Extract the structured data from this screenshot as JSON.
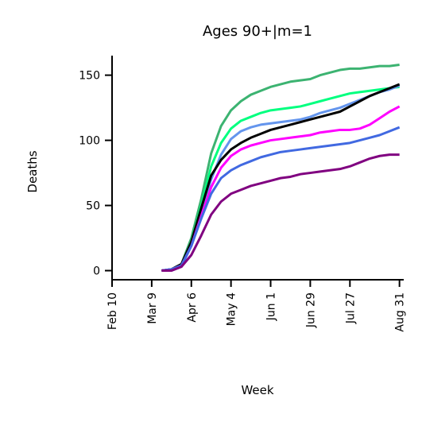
{
  "chart_data": {
    "type": "line",
    "title": "Ages 90+|m=1",
    "xlabel": "Week",
    "ylabel": "Deaths",
    "x_ticks": [
      "Feb 10",
      "Mar 9",
      "Apr 6",
      "May 4",
      "Jun 1",
      "Jun 29",
      "Jul 27",
      "Aug 31"
    ],
    "y_ticks": [
      0,
      50,
      100,
      150
    ],
    "xlim": [
      "2020-02-10",
      "2020-09-03"
    ],
    "ylim": [
      -7,
      165
    ],
    "grid": false,
    "x": [
      "2020-03-16",
      "2020-03-23",
      "2020-03-30",
      "2020-04-06",
      "2020-04-13",
      "2020-04-20",
      "2020-04-27",
      "2020-05-04",
      "2020-05-11",
      "2020-05-18",
      "2020-05-25",
      "2020-06-01",
      "2020-06-08",
      "2020-06-15",
      "2020-06-22",
      "2020-06-29",
      "2020-07-06",
      "2020-07-13",
      "2020-07-20",
      "2020-07-27",
      "2020-08-03",
      "2020-08-10",
      "2020-08-17",
      "2020-08-24",
      "2020-08-31"
    ],
    "series": [
      {
        "color": "#3cb371",
        "values": [
          0,
          1,
          5,
          25,
          55,
          90,
          111,
          123,
          130,
          135,
          138,
          141,
          143,
          145,
          146,
          147,
          150,
          152,
          154,
          155,
          155,
          156,
          157,
          157,
          158
        ]
      },
      {
        "color": "#00ff7f",
        "values": [
          0,
          1,
          4,
          22,
          50,
          80,
          98,
          109,
          115,
          118,
          121,
          123,
          124,
          125,
          126,
          128,
          130,
          132,
          134,
          136,
          137,
          138,
          139,
          140,
          141
        ]
      },
      {
        "color": "#6495ed",
        "values": [
          0,
          0,
          3,
          19,
          44,
          70,
          89,
          101,
          107,
          110,
          112,
          113,
          114,
          115,
          116,
          118,
          121,
          123,
          125,
          128,
          131,
          134,
          137,
          139,
          142
        ]
      },
      {
        "color": "#000000",
        "values": [
          0,
          1,
          5,
          22,
          48,
          73,
          85,
          93,
          98,
          102,
          105,
          108,
          110,
          112,
          114,
          116,
          118,
          120,
          122,
          126,
          130,
          134,
          137,
          140,
          143
        ]
      },
      {
        "color": "#ff00ff",
        "values": [
          0,
          1,
          4,
          19,
          42,
          64,
          79,
          88,
          93,
          96,
          98,
          100,
          101,
          102,
          103,
          104,
          106,
          107,
          108,
          108,
          109,
          112,
          117,
          122,
          126
        ]
      },
      {
        "color": "#4169e1",
        "values": [
          0,
          1,
          4,
          19,
          40,
          59,
          71,
          77,
          81,
          84,
          87,
          89,
          91,
          92,
          93,
          94,
          95,
          96,
          97,
          98,
          100,
          102,
          104,
          107,
          110
        ]
      },
      {
        "color": "#800080",
        "values": [
          0,
          0,
          3,
          12,
          27,
          43,
          53,
          59,
          62,
          65,
          67,
          69,
          71,
          72,
          74,
          75,
          76,
          77,
          78,
          80,
          83,
          86,
          88,
          89,
          89
        ]
      }
    ]
  }
}
